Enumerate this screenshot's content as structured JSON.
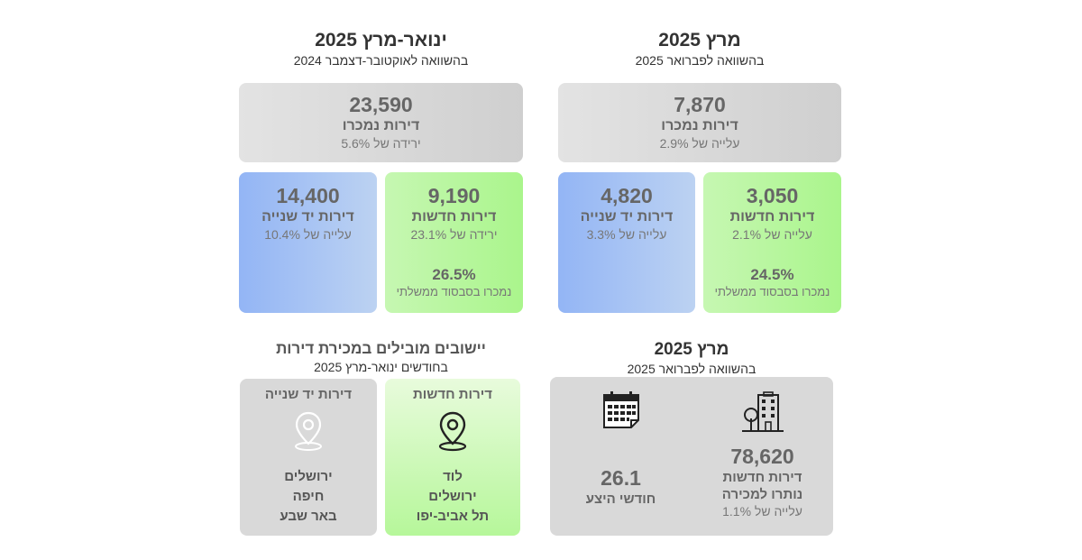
{
  "left_section": {
    "title": "ינואר-מרץ 2025",
    "subtitle": "בהשוואה לאוקטובר-דצמבר 2024",
    "total": {
      "value": "23,590",
      "label": "דירות נמכרו",
      "change": "ירידה של 5.6%"
    },
    "second_hand": {
      "value": "14,400",
      "label": "דירות יד שנייה",
      "change": "עלייה של 10.4%"
    },
    "new": {
      "value": "9,190",
      "label": "דירות חדשות",
      "change": "ירידה של 23.1%",
      "subsidy_pct": "26.5%",
      "subsidy_label": "נמכרו בסבסוד ממשלתי"
    }
  },
  "right_section": {
    "title": "מרץ 2025",
    "subtitle": "בהשוואה לפברואר 2025",
    "total": {
      "value": "7,870",
      "label": "דירות נמכרו",
      "change": "עלייה של 2.9%"
    },
    "second_hand": {
      "value": "4,820",
      "label": "דירות יד שנייה",
      "change": "עלייה של 3.3%"
    },
    "new": {
      "value": "3,050",
      "label": "דירות חדשות",
      "change": "עלייה של 2.1%",
      "subsidy_pct": "24.5%",
      "subsidy_label": "נמכרו בסבסוד ממשלתי"
    }
  },
  "leading_cities": {
    "title": "יישובים מובילים במכירת דירות",
    "subtitle": "בחודשים ינואר-מרץ 2025",
    "second_hand": {
      "label": "דירות יד שנייה",
      "icon": "map-pin-outline-icon",
      "cities": [
        "ירושלים",
        "חיפה",
        "באר שבע"
      ]
    },
    "new": {
      "label": "דירות חדשות",
      "icon": "map-pin-icon",
      "cities": [
        "לוד",
        "ירושלים",
        "תל אביב-יפו"
      ]
    }
  },
  "inventory": {
    "title": "מרץ 2025",
    "subtitle": "בהשוואה לפברואר 2025",
    "months": {
      "value": "26.1",
      "label": "חודשי היצע",
      "icon": "calendar-icon"
    },
    "unsold": {
      "value": "78,620",
      "label1": "דירות חדשות",
      "label2": "נותרו למכירה",
      "change": "עלייה של 1.1%",
      "icon": "building-icon"
    }
  }
}
